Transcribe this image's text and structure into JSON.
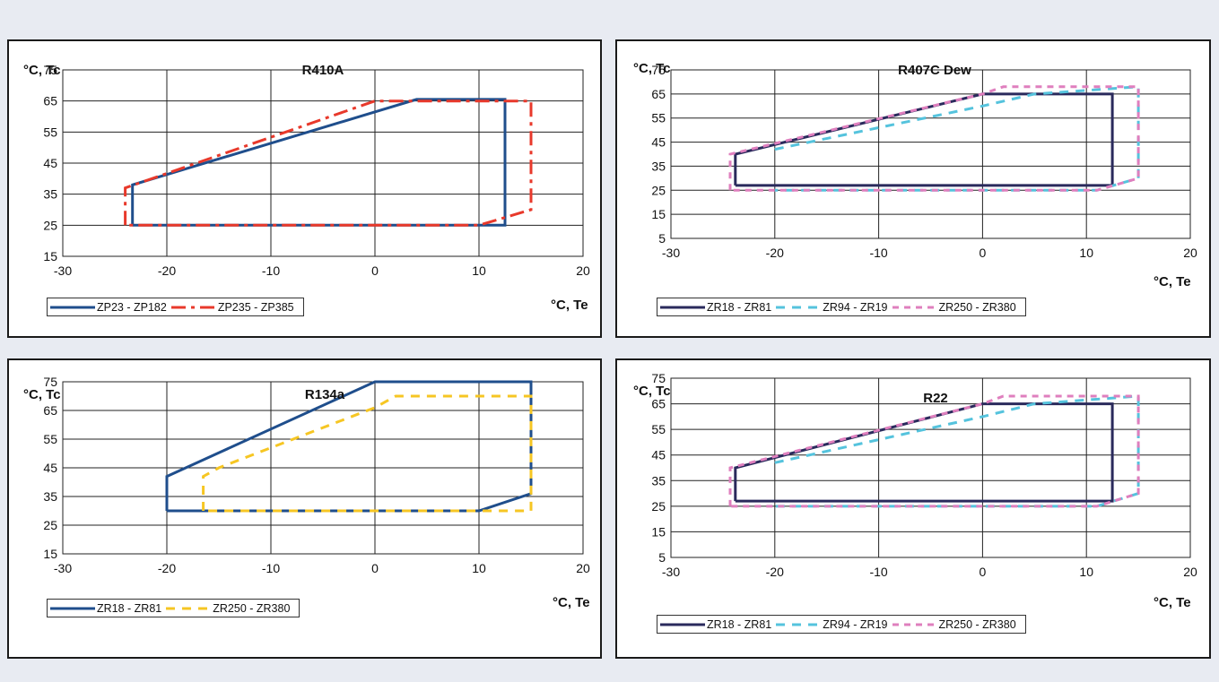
{
  "chart_data": [
    {
      "type": "line",
      "title": "R410A",
      "ylabel": "°C, Tc",
      "xlabel": "°C, Te",
      "xlim": [
        -30,
        20
      ],
      "ylim": [
        15,
        75
      ],
      "x_ticks": [
        -30,
        -20,
        -10,
        0,
        10,
        20
      ],
      "y_ticks": [
        15,
        25,
        35,
        45,
        55,
        65,
        75
      ],
      "grid": true,
      "legend_position": "bottom-left",
      "series": [
        {
          "name": "ZP23 - ZP182",
          "color": "#1f4e8c",
          "dash": "solid",
          "x": [
            -23.3,
            -23.3,
            4,
            12.5,
            12.5,
            -23.3
          ],
          "y": [
            25,
            38,
            65.5,
            65.5,
            25,
            25
          ]
        },
        {
          "name": "ZP235 - ZP385",
          "color": "#e8392b",
          "dash": "dashdot",
          "x": [
            -24,
            -24,
            0,
            15,
            15,
            10,
            -24
          ],
          "y": [
            25,
            37,
            65,
            65,
            30,
            25,
            25
          ]
        }
      ]
    },
    {
      "type": "line",
      "title": "R407C Dew",
      "ylabel": "°C, Tc",
      "xlabel": "°C, Te",
      "xlim": [
        -30,
        20
      ],
      "ylim": [
        5,
        75
      ],
      "x_ticks": [
        -30,
        -20,
        -10,
        0,
        10,
        20
      ],
      "y_ticks": [
        5,
        15,
        25,
        35,
        45,
        55,
        65,
        75
      ],
      "grid": true,
      "legend_position": "bottom-left",
      "series": [
        {
          "name": "ZR18 - ZR81",
          "color": "#2a2a5c",
          "dash": "solid",
          "x": [
            -23.8,
            -23.8,
            0,
            12.5,
            12.5,
            -23.8
          ],
          "y": [
            27,
            40,
            65,
            65,
            27,
            27
          ]
        },
        {
          "name": "ZR94 - ZR19",
          "color": "#55c3dd",
          "dash": "dash",
          "x": [
            -20,
            0,
            5,
            15,
            15,
            11,
            -20
          ],
          "y": [
            42,
            60,
            65,
            68,
            30,
            25,
            25
          ]
        },
        {
          "name": "ZR250 - ZR380",
          "color": "#df7fbe",
          "dash": "shortdash",
          "x": [
            -24.3,
            -24.3,
            0,
            2,
            15,
            15,
            11,
            -24.3
          ],
          "y": [
            25,
            40,
            65,
            68,
            68,
            30,
            25,
            25
          ]
        }
      ]
    },
    {
      "type": "line",
      "title": "R134a",
      "ylabel": "°C, Tc",
      "xlabel": "°C, Te",
      "xlim": [
        -30,
        20
      ],
      "ylim": [
        15,
        75
      ],
      "x_ticks": [
        -30,
        -20,
        -10,
        0,
        10,
        20
      ],
      "y_ticks": [
        15,
        25,
        35,
        45,
        55,
        65,
        75
      ],
      "grid": true,
      "legend_position": "bottom-left",
      "series": [
        {
          "name": "ZR18 - ZR81",
          "color": "#1f4e8c",
          "dash": "solid",
          "x": [
            -20,
            -20,
            0,
            15,
            15,
            10,
            -20
          ],
          "y": [
            30,
            42,
            75,
            75,
            36,
            30,
            30
          ]
        },
        {
          "name": "ZR250 - ZR380",
          "color": "#f6c623",
          "dash": "dash",
          "x": [
            -16.5,
            -16.5,
            -15,
            -10,
            0,
            2,
            15,
            15,
            -16.5
          ],
          "y": [
            30,
            42,
            45,
            52,
            66,
            70,
            70,
            30,
            30
          ]
        }
      ]
    },
    {
      "type": "line",
      "title": "R22",
      "ylabel": "°C, Tc",
      "xlabel": "°C, Te",
      "xlim": [
        -30,
        20
      ],
      "ylim": [
        5,
        75
      ],
      "x_ticks": [
        -30,
        -20,
        -10,
        0,
        10,
        20
      ],
      "y_ticks": [
        5,
        15,
        25,
        35,
        45,
        55,
        65,
        75
      ],
      "grid": true,
      "legend_position": "bottom-left",
      "series": [
        {
          "name": "ZR18 - ZR81",
          "color": "#2a2a5c",
          "dash": "solid",
          "x": [
            -23.8,
            -23.8,
            0,
            12.5,
            12.5,
            -23.8
          ],
          "y": [
            27,
            40,
            65,
            65,
            27,
            27
          ]
        },
        {
          "name": "ZR94 - ZR19",
          "color": "#55c3dd",
          "dash": "dash",
          "x": [
            -20,
            0,
            5,
            15,
            15,
            11,
            -20
          ],
          "y": [
            42,
            60,
            65,
            68,
            30,
            25,
            25
          ]
        },
        {
          "name": "ZR250 - ZR380",
          "color": "#df7fbe",
          "dash": "shortdash",
          "x": [
            -24.3,
            -24.3,
            0,
            2,
            15,
            15,
            11,
            -24.3
          ],
          "y": [
            25,
            40,
            65,
            68,
            68,
            30,
            25,
            25
          ]
        }
      ]
    }
  ]
}
